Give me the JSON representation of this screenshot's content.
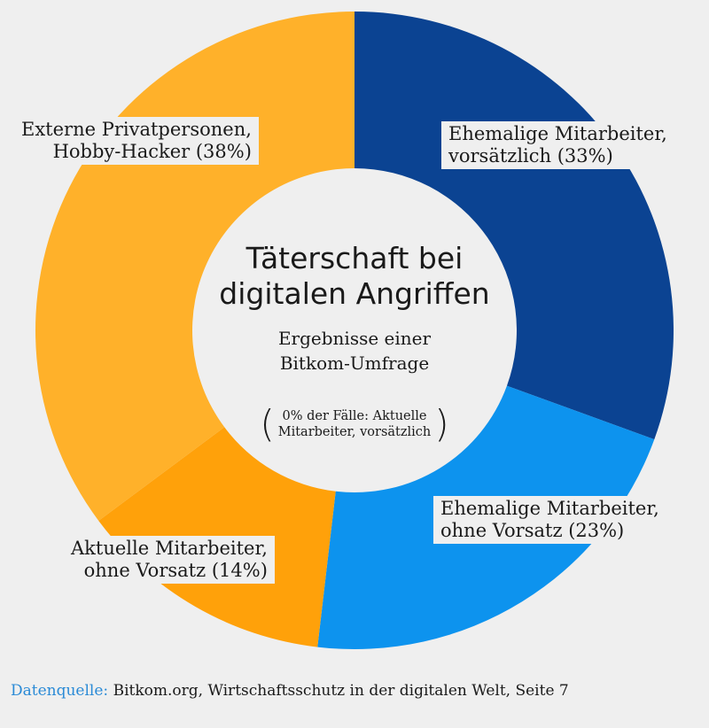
{
  "chart_data": {
    "type": "pie",
    "variant": "donut",
    "title": [
      "Täterschaft bei",
      "digitalen Angriffen"
    ],
    "subtitle": [
      "Ergebnisse einer",
      "Bitkom-Umfrage"
    ],
    "note": [
      "0% der Fälle: Aktuelle",
      "Mitarbeiter, vorsätzlich"
    ],
    "slices": [
      {
        "name": "ehemalige-vorsaetzlich",
        "value": 33,
        "color": "#0b4392",
        "label": [
          "Ehemalige Mitarbeiter,",
          "vorsätzlich (33%)"
        ]
      },
      {
        "name": "ehemalige-ohne-vorsatz",
        "value": 23,
        "color": "#0d93ee",
        "label": [
          "Ehemalige Mitarbeiter,",
          "ohne Vorsatz (23%)"
        ]
      },
      {
        "name": "aktuelle-ohne-vorsatz",
        "value": 14,
        "color": "#ffa10a",
        "label": [
          "Aktuelle Mitarbeiter,",
          "ohne Vorsatz (14%)"
        ]
      },
      {
        "name": "externe-privatpersonen",
        "value": 38,
        "color": "#ffb12a",
        "label": [
          "Externe Privatpersonen,",
          "Hobby-Hacker (38%)"
        ]
      }
    ]
  },
  "source": {
    "label": "Datenquelle:",
    "text": "Bitkom.org, Wirtschaftsschutz in der digitalen Welt, Seite 7"
  }
}
